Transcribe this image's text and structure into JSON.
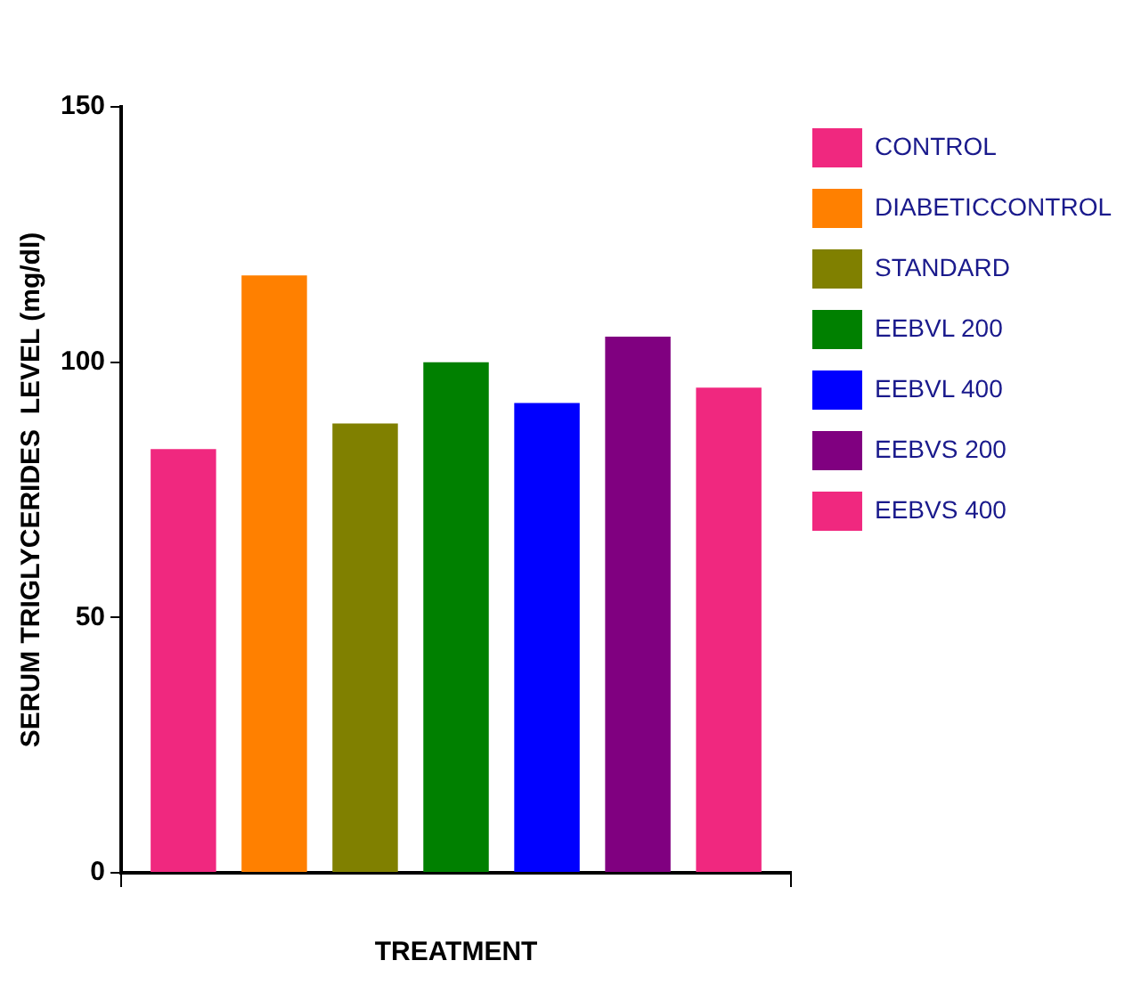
{
  "chart_data": {
    "type": "bar",
    "xlabel": "TREATMENT",
    "ylabel": "SERUM TRIGLYCERIDES  LEVEL (mg/dl)",
    "categories": [
      null
    ],
    "series": [
      {
        "name": "CONTROL",
        "color": "#f0287f",
        "values": [
          83
        ]
      },
      {
        "name": "DIABETICCONTROL",
        "color": "#ff8000",
        "values": [
          117
        ]
      },
      {
        "name": "STANDARD",
        "color": "#808000",
        "values": [
          88
        ]
      },
      {
        "name": "EEBVL 200",
        "color": "#008000",
        "values": [
          100
        ]
      },
      {
        "name": "EEBVL 400",
        "color": "#0000ff",
        "values": [
          92
        ]
      },
      {
        "name": "EEBVS 200",
        "color": "#800080",
        "values": [
          105
        ]
      },
      {
        "name": "EEBVS 400",
        "color": "#f0287f",
        "values": [
          95
        ]
      }
    ],
    "ylim": [
      0,
      150
    ],
    "yticks": [
      0,
      50,
      100,
      150
    ],
    "grid": false,
    "legend": "right"
  }
}
